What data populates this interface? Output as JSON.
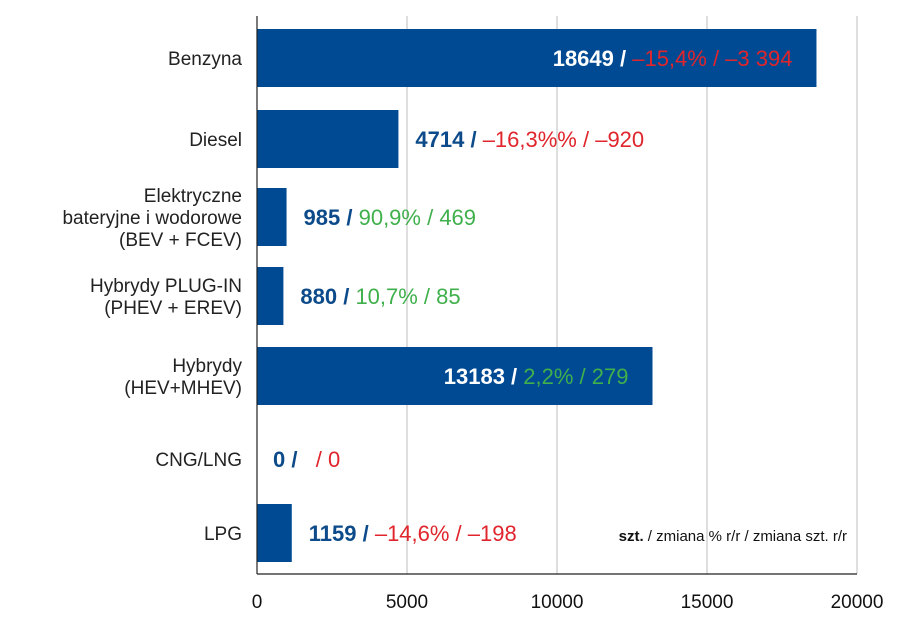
{
  "chart_data": {
    "type": "bar",
    "orientation": "horizontal",
    "categories": [
      [
        "Benzyna"
      ],
      [
        "Diesel"
      ],
      [
        "Elektryczne",
        "bateryjne i wodorowe",
        "(BEV + FCEV)"
      ],
      [
        "Hybrydy PLUG-IN",
        "(PHEV + EREV)"
      ],
      [
        "Hybrydy",
        "(HEV+MHEV)"
      ],
      [
        "CNG/LNG"
      ],
      [
        "LPG"
      ]
    ],
    "values": [
      18649,
      4714,
      985,
      880,
      13183,
      0,
      1159
    ],
    "labels": [
      {
        "value": "18649",
        "pct": "–15,4%",
        "abs": "–3 394",
        "trend": "down",
        "inside": true
      },
      {
        "value": "4714",
        "pct": "–16,3%%",
        "abs": "–920",
        "trend": "down",
        "inside": false
      },
      {
        "value": "985",
        "pct": "90,9%",
        "abs": "469",
        "trend": "up",
        "inside": false
      },
      {
        "value": "880",
        "pct": "10,7%",
        "abs": "85",
        "trend": "up",
        "inside": false
      },
      {
        "value": "13183",
        "pct": "2,2%",
        "abs": "279",
        "trend": "up",
        "inside": true
      },
      {
        "value": "0",
        "pct": "",
        "abs": "0",
        "trend": "down",
        "inside": false
      },
      {
        "value": "1159",
        "pct": "–14,6%",
        "abs": "–198",
        "trend": "down",
        "inside": false
      }
    ],
    "separator": " / ",
    "xlim": [
      0,
      20000
    ],
    "xticks": [
      0,
      5000,
      10000,
      15000,
      20000
    ],
    "grid": true,
    "note": {
      "bold": "szt.",
      "rest": " / zmiana % r/r / zmiana szt. r/r"
    },
    "colors": {
      "bar": "#004a93",
      "value": "#0c4a8a",
      "down": "#e0252c",
      "up": "#3fb04b",
      "grid": "#c8c8c8",
      "axis": "#222222"
    }
  }
}
